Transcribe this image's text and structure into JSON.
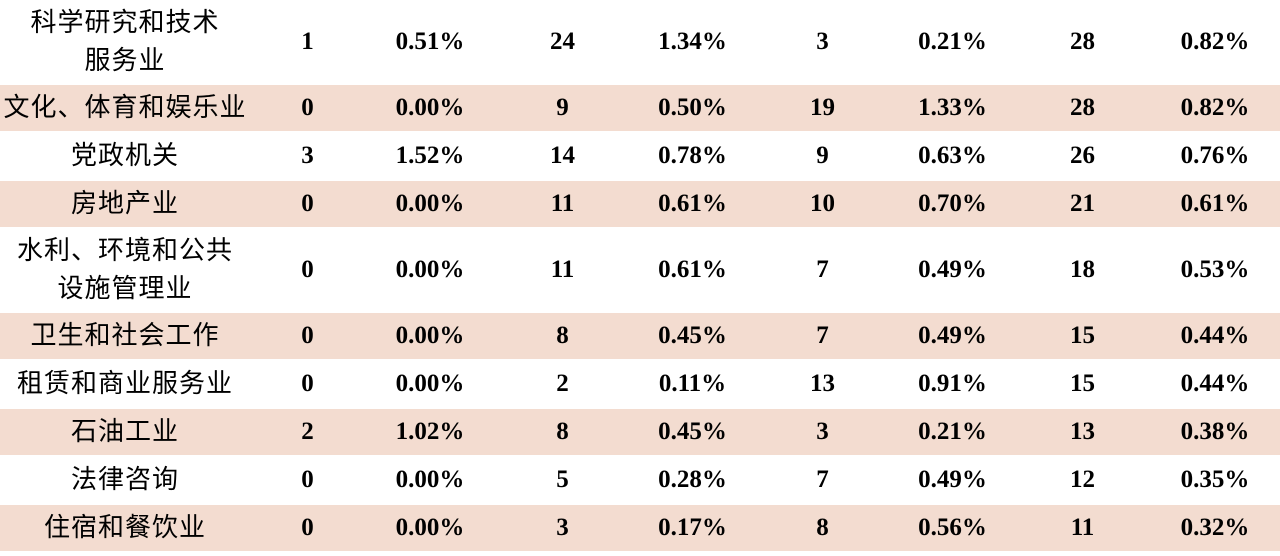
{
  "table": {
    "rows": [
      [
        "科学研究和技术\n服务业",
        "1",
        "0.51%",
        "24",
        "1.34%",
        "3",
        "0.21%",
        "28",
        "0.82%"
      ],
      [
        "文化、体育和娱乐业",
        "0",
        "0.00%",
        "9",
        "0.50%",
        "19",
        "1.33%",
        "28",
        "0.82%"
      ],
      [
        "党政机关",
        "3",
        "1.52%",
        "14",
        "0.78%",
        "9",
        "0.63%",
        "26",
        "0.76%"
      ],
      [
        "房地产业",
        "0",
        "0.00%",
        "11",
        "0.61%",
        "10",
        "0.70%",
        "21",
        "0.61%"
      ],
      [
        "水利、环境和公共\n设施管理业",
        "0",
        "0.00%",
        "11",
        "0.61%",
        "7",
        "0.49%",
        "18",
        "0.53%"
      ],
      [
        "卫生和社会工作",
        "0",
        "0.00%",
        "8",
        "0.45%",
        "7",
        "0.49%",
        "15",
        "0.44%"
      ],
      [
        "租赁和商业服务业",
        "0",
        "0.00%",
        "2",
        "0.11%",
        "13",
        "0.91%",
        "15",
        "0.44%"
      ],
      [
        "石油工业",
        "2",
        "1.02%",
        "8",
        "0.45%",
        "3",
        "0.21%",
        "13",
        "0.38%"
      ],
      [
        "法律咨询",
        "0",
        "0.00%",
        "5",
        "0.28%",
        "7",
        "0.49%",
        "12",
        "0.35%"
      ],
      [
        "住宿和餐饮业",
        "0",
        "0.00%",
        "3",
        "0.17%",
        "8",
        "0.56%",
        "11",
        "0.32%"
      ]
    ]
  }
}
